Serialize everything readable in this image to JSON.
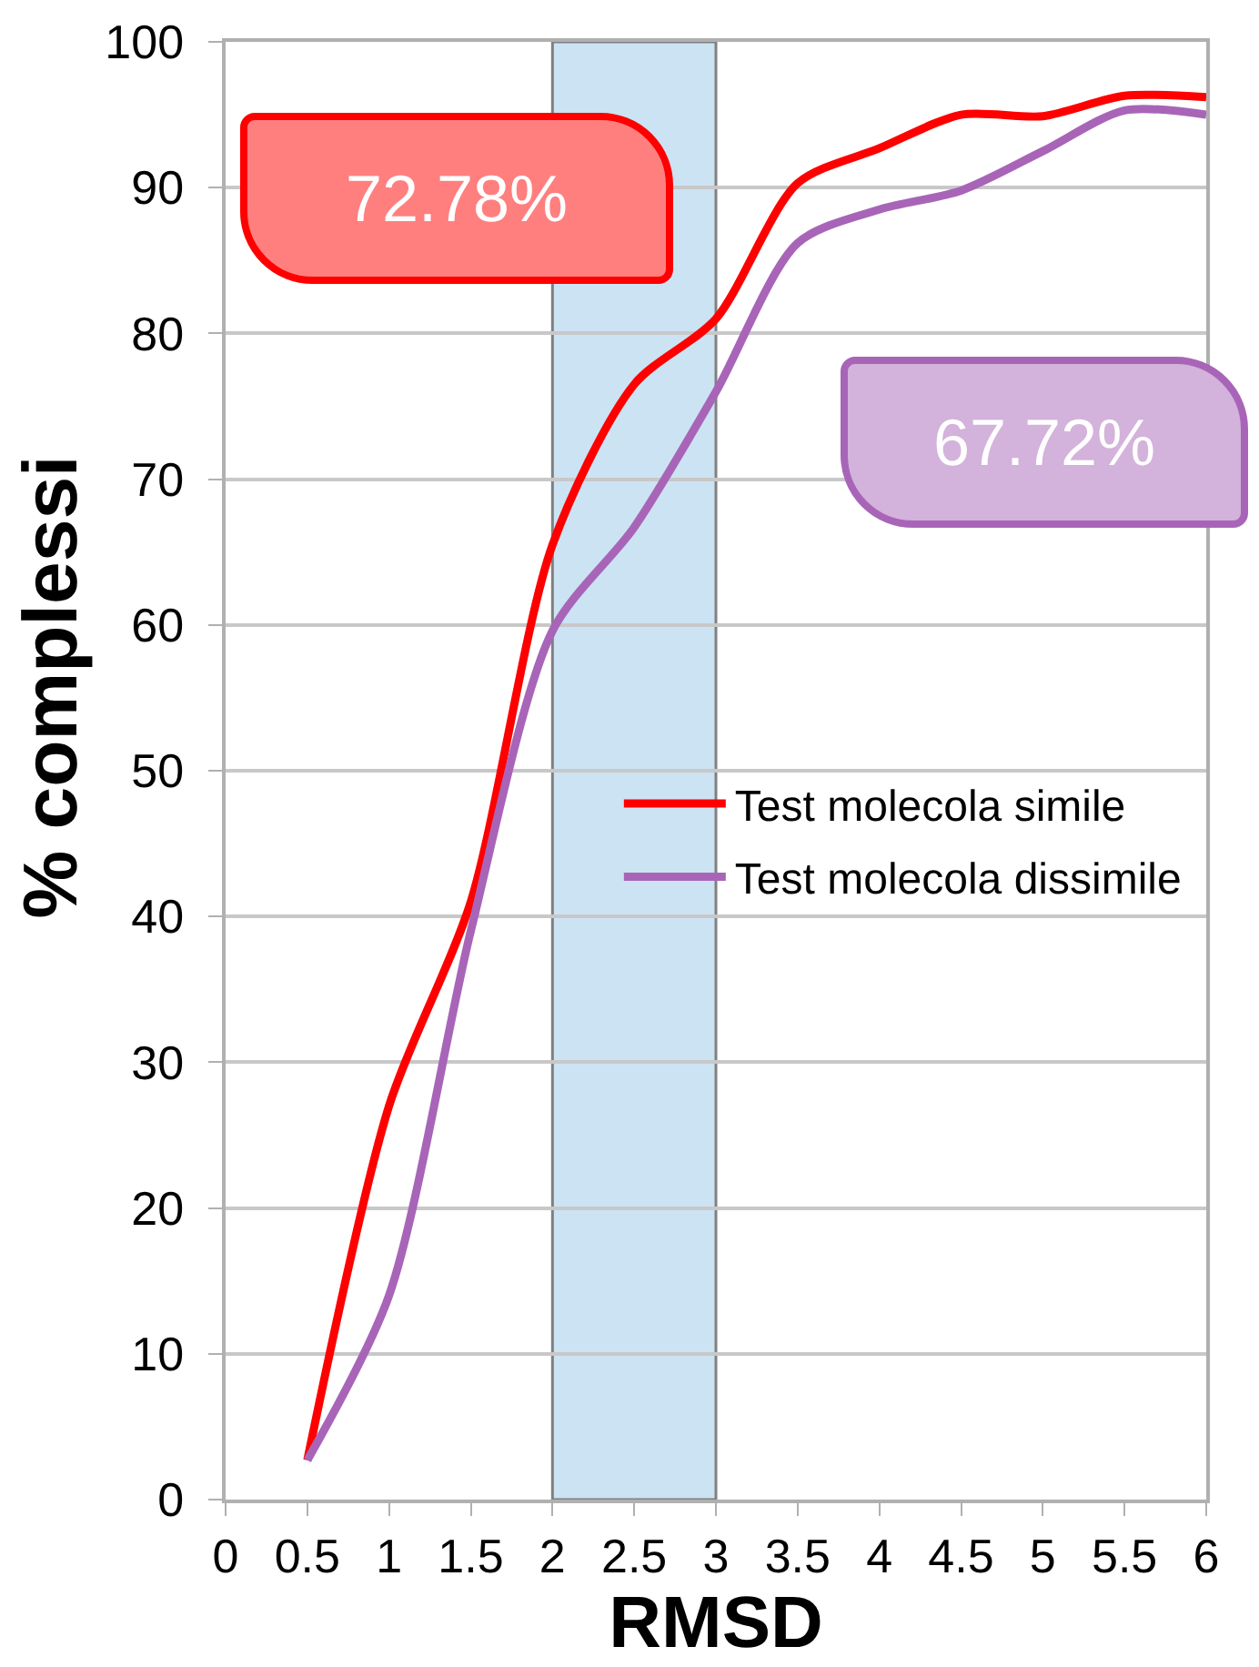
{
  "chart_data": {
    "type": "line",
    "xlabel": "RMSD",
    "ylabel": "% complessi",
    "x": [
      0.5,
      1,
      1.5,
      2,
      2.5,
      3,
      3.5,
      4,
      4.5,
      5,
      5.5,
      6
    ],
    "series": [
      {
        "name": "Test molecola simile",
        "color": "#ff0000",
        "values": [
          2.7,
          27,
          41,
          65.5,
          76.5,
          81,
          90.3,
          92.7,
          95,
          94.9,
          96.3,
          96.2
        ]
      },
      {
        "name": "Test molecola dissimile",
        "color": "#a865b8",
        "values": [
          2.7,
          14,
          39,
          59.6,
          66.7,
          76,
          86.2,
          88.5,
          89.8,
          92.5,
          95.3,
          95
        ]
      }
    ],
    "xlim": [
      0,
      6
    ],
    "xticks": [
      0,
      0.5,
      1,
      1.5,
      2,
      2.5,
      3,
      3.5,
      4,
      4.5,
      5,
      5.5,
      6
    ],
    "ylim": [
      0,
      100
    ],
    "yticks": [
      0,
      10,
      20,
      30,
      40,
      50,
      60,
      70,
      80,
      90,
      100
    ],
    "grid": "y",
    "legend": "right",
    "bands": [
      {
        "axis": "x",
        "from": 2,
        "to": 3,
        "color": "#cce3f3"
      }
    ],
    "annotations": [
      "72.78%",
      "67.72%"
    ]
  }
}
